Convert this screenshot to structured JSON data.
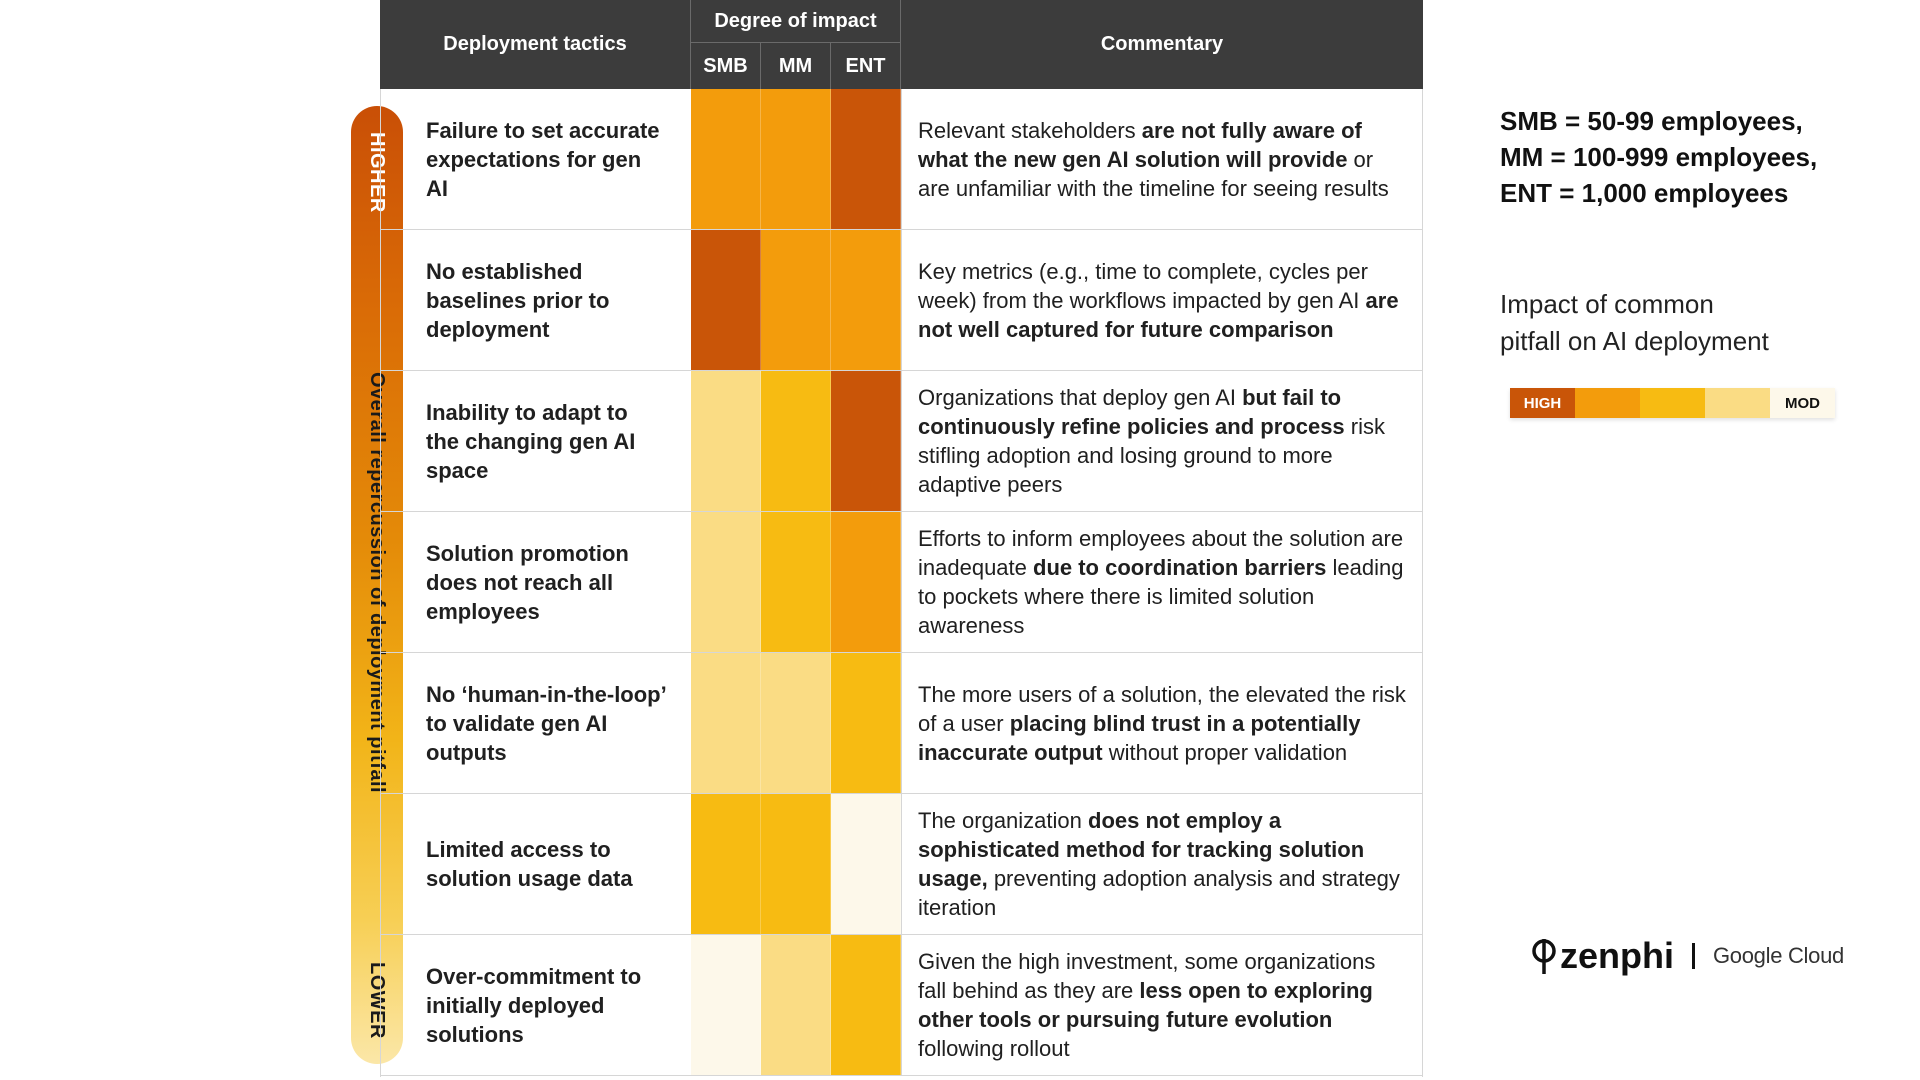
{
  "header": {
    "tactics": "Deployment tactics",
    "degree": "Degree of impact",
    "smb": "SMB",
    "mm": "MM",
    "ent": "ENT",
    "commentary": "Commentary"
  },
  "side": {
    "higher": "HIGHER",
    "main": "Overall repercussion of deployment pitfall",
    "lower": "LOWER"
  },
  "colors": {
    "high": "#c95508",
    "orange": "#f39c0c",
    "amber": "#f7bb12",
    "light": "#fadc84",
    "mod": "#fdf8ea"
  },
  "rows": [
    {
      "tactic": "Failure to set accurate expectations for gen AI",
      "levels": [
        "orange",
        "orange",
        "high"
      ],
      "commentary": [
        {
          "t": "Relevant stakeholders ",
          "b": false
        },
        {
          "t": "are not fully aware of what the new gen AI solution will provide",
          "b": true
        },
        {
          "t": " or are unfamiliar with the timeline for seeing results",
          "b": false
        }
      ]
    },
    {
      "tactic": "No established baselines prior to deployment",
      "levels": [
        "high",
        "orange",
        "orange"
      ],
      "commentary": [
        {
          "t": "Key metrics (e.g., time to complete, cycles per week) from the workflows impacted by gen AI ",
          "b": false
        },
        {
          "t": "are not well captured for future comparison",
          "b": true
        }
      ]
    },
    {
      "tactic": "Inability to adapt to the changing gen AI space",
      "levels": [
        "light",
        "amber",
        "high"
      ],
      "commentary": [
        {
          "t": "Organizations that deploy gen AI ",
          "b": false
        },
        {
          "t": "but fail to continuously refine policies and process",
          "b": true
        },
        {
          "t": " risk stifling adoption and losing ground to more adaptive peers",
          "b": false
        }
      ]
    },
    {
      "tactic": "Solution promotion does not reach all employees",
      "levels": [
        "light",
        "amber",
        "orange"
      ],
      "commentary": [
        {
          "t": "Efforts to inform employees about the solution are inadequate ",
          "b": false
        },
        {
          "t": "due to coordination barriers",
          "b": true
        },
        {
          "t": " leading to pockets where there is limited solution awareness",
          "b": false
        }
      ]
    },
    {
      "tactic": "No ‘human-in-the-loop’ to validate gen AI outputs",
      "levels": [
        "light",
        "light",
        "amber"
      ],
      "commentary": [
        {
          "t": "The more users of a solution, the elevated the risk of a user ",
          "b": false
        },
        {
          "t": "placing blind trust in a potentially inaccurate output",
          "b": true
        },
        {
          "t": " without proper validation",
          "b": false
        }
      ]
    },
    {
      "tactic": "Limited access to solution usage data",
      "levels": [
        "amber",
        "amber",
        "mod"
      ],
      "commentary": [
        {
          "t": "The organization ",
          "b": false
        },
        {
          "t": "does not employ a sophisticated method for tracking solution usage,",
          "b": true
        },
        {
          "t": " preventing adoption analysis and strategy iteration",
          "b": false
        }
      ]
    },
    {
      "tactic": "Over-commitment to initially deployed solutions",
      "levels": [
        "mod",
        "light",
        "amber"
      ],
      "commentary": [
        {
          "t": "Given the high investment, some organizations fall behind as they are ",
          "b": false
        },
        {
          "t": "less open to exploring other tools or pursuing future evolution",
          "b": true
        },
        {
          "t": " following rollout",
          "b": false
        }
      ]
    }
  ],
  "legend": {
    "smb_def": "SMB = 50-99 employees,",
    "mm_def": "MM = 100-999 employees,",
    "ent_def": "ENT = 1,000 employees",
    "impact_line1": "Impact of common",
    "impact_line2": "pitfall on AI deployment",
    "high_label": "HIGH",
    "mod_label": "MOD"
  },
  "logos": {
    "zenphi": "zenphi",
    "google_cloud": "Google Cloud"
  }
}
